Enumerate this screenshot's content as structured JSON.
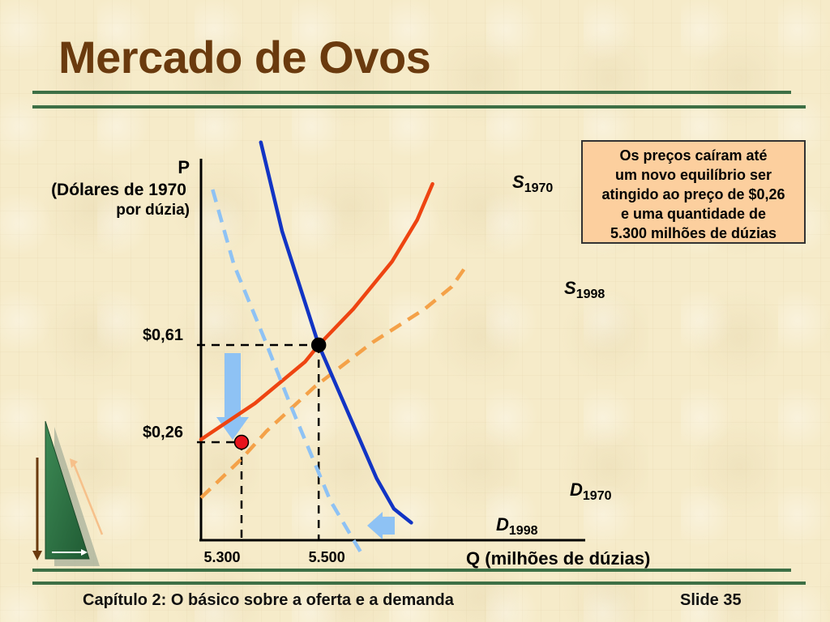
{
  "slide": {
    "title": "Mercado de Ovos",
    "footer_left": "Capítulo 2: O básico sobre a oferta e a demanda",
    "footer_right": "Slide 35"
  },
  "callout": {
    "lines": [
      "Os preços caíram até",
      "um novo equilíbrio ser",
      "atingido ao preço de $0,26",
      "e uma quantidade de",
      "5.300 milhões de dúzias"
    ]
  },
  "chart_data": {
    "type": "line",
    "title": "Mercado de Ovos",
    "ylabel": {
      "letter": "P",
      "line1": "(Dólares de 1970",
      "line2": "por dúzia)"
    },
    "xlabel": {
      "letter": "Q",
      "rest": " (milhões de dúzias)"
    },
    "y_ticks": [
      {
        "label": "$0,61",
        "value": 0.61
      },
      {
        "label": "$0,26",
        "value": 0.26
      }
    ],
    "x_ticks": [
      {
        "label": "5.300",
        "value": 5300
      },
      {
        "label": "5.500",
        "value": 5500
      }
    ],
    "equilibria": [
      {
        "x": 5500,
        "y": 0.61,
        "color": "#000000"
      },
      {
        "x": 5300,
        "y": 0.26,
        "color": "#e8141c"
      }
    ],
    "series": [
      {
        "name_main": "S",
        "name_sub": "1970",
        "color": "#ee4411",
        "style": "solid",
        "points": [
          [
            5195,
            0.27
          ],
          [
            5335,
            0.4
          ],
          [
            5465,
            0.55
          ],
          [
            5500,
            0.61
          ],
          [
            5590,
            0.74
          ],
          [
            5690,
            0.91
          ],
          [
            5755,
            1.06
          ],
          [
            5795,
            1.19
          ]
        ]
      },
      {
        "name_main": "S",
        "name_sub": "1998",
        "color": "#f4a148",
        "style": "dashed",
        "points": [
          [
            5195,
            0.06
          ],
          [
            5300,
            0.2
          ],
          [
            5365,
            0.3
          ],
          [
            5490,
            0.46
          ],
          [
            5640,
            0.62
          ],
          [
            5775,
            0.74
          ],
          [
            5845,
            0.82
          ],
          [
            5880,
            0.89
          ]
        ]
      },
      {
        "name_main": "D",
        "name_sub": "1970",
        "color": "#1234c4",
        "style": "solid",
        "points": [
          [
            5350,
            1.34
          ],
          [
            5405,
            1.02
          ],
          [
            5500,
            0.61
          ],
          [
            5650,
            0.13
          ],
          [
            5695,
            0.02
          ],
          [
            5740,
            -0.03
          ]
        ]
      },
      {
        "name_main": "D",
        "name_sub": "1998",
        "color": "#8ec2f4",
        "style": "dashed",
        "points": [
          [
            5225,
            1.17
          ],
          [
            5280,
            0.9
          ],
          [
            5360,
            0.63
          ],
          [
            5425,
            0.4
          ],
          [
            5530,
            0.05
          ],
          [
            5615,
            -0.15
          ]
        ]
      }
    ],
    "shifts": [
      {
        "direction": "down",
        "color": "#8ec2f4"
      },
      {
        "direction": "left",
        "color": "#8ec2f4"
      }
    ]
  }
}
